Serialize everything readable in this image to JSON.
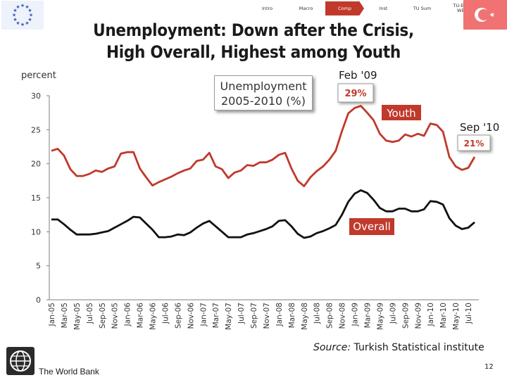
{
  "nav": {
    "tabs": [
      {
        "label": "Intro",
        "active": false
      },
      {
        "label": "Macro",
        "active": false
      },
      {
        "label": "Comp",
        "active": true
      },
      {
        "label": "Inst",
        "active": false
      },
      {
        "label": "TU Sum",
        "active": false
      },
      {
        "label": "TU-EU-\nWB",
        "active": false
      }
    ]
  },
  "title": {
    "line1": "Unemployment: Down after the Crisis,",
    "line2": "High Overall, Highest among Youth"
  },
  "legend_box": {
    "line1": "Unemployment",
    "line2": "2005-2010 (%)"
  },
  "source": {
    "prefix": "Source:",
    "text": " Turkish Statistical institute"
  },
  "footer": {
    "org": "The World Bank",
    "page": "12"
  },
  "colors": {
    "youth_line": "#c0392b",
    "overall_line": "#111111",
    "label_fill": "#c0392b",
    "accent": "#c0392b"
  },
  "chart_data": {
    "type": "line",
    "title": "",
    "ylabel": "percent",
    "xlabel": "",
    "ylim": [
      0,
      30
    ],
    "yticks": [
      0,
      5,
      10,
      15,
      20,
      25,
      30
    ],
    "grid": false,
    "x": [
      "Jan-05",
      "Feb-05",
      "Mar-05",
      "Apr-05",
      "May-05",
      "Jun-05",
      "Jul-05",
      "Aug-05",
      "Sep-05",
      "Oct-05",
      "Nov-05",
      "Dec-05",
      "Jan-06",
      "Feb-06",
      "Mar-06",
      "Apr-06",
      "May-06",
      "Jun-06",
      "Jul-06",
      "Aug-06",
      "Sep-06",
      "Oct-06",
      "Nov-06",
      "Dec-06",
      "Jan-07",
      "Feb-07",
      "Mar-07",
      "Apr-07",
      "May-07",
      "Jun-07",
      "Jul-07",
      "Aug-07",
      "Sep-07",
      "Oct-07",
      "Nov-07",
      "Dec-07",
      "Jan-08",
      "Feb-08",
      "Mar-08",
      "Apr-08",
      "May-08",
      "Jun-08",
      "Jul-08",
      "Aug-08",
      "Sep-08",
      "Oct-08",
      "Nov-08",
      "Dec-08",
      "Jan-09",
      "Feb-09",
      "Mar-09",
      "Apr-09",
      "May-09",
      "Jun-09",
      "Jul-09",
      "Aug-09",
      "Sep-09",
      "Oct-09",
      "Nov-09",
      "Dec-09",
      "Jan-10",
      "Feb-10",
      "Mar-10",
      "Apr-10",
      "May-10",
      "Jun-10",
      "Jul-10",
      "Aug-10"
    ],
    "x_tick_labels": [
      "Jan-05",
      "Mar-05",
      "May-05",
      "Jul-05",
      "Sep-05",
      "Nov-05",
      "Jan-06",
      "Mar-06",
      "May-06",
      "Jul-06",
      "Sep-06",
      "Nov-06",
      "Jan-07",
      "Mar-07",
      "May-07",
      "Jul-07",
      "Sep-07",
      "Nov-07",
      "Jan-08",
      "Mar-08",
      "May-08",
      "Jul-08",
      "Sep-08",
      "Nov-08",
      "Jan-09",
      "Mar-09",
      "May-09",
      "Jul-09",
      "Sep-09",
      "Nov-09",
      "Jan-10",
      "Mar-10",
      "May-10",
      "Jul-10"
    ],
    "series": [
      {
        "name": "Youth",
        "color": "#c0392b",
        "values": [
          21.9,
          22.2,
          21.2,
          19.2,
          18.2,
          18.2,
          18.5,
          19.0,
          18.8,
          19.3,
          19.6,
          21.5,
          21.7,
          21.7,
          19.3,
          18.0,
          16.8,
          17.3,
          17.7,
          18.1,
          18.6,
          19.0,
          19.3,
          20.4,
          20.6,
          21.6,
          19.6,
          19.2,
          17.9,
          18.7,
          19.0,
          19.8,
          19.7,
          20.2,
          20.2,
          20.6,
          21.3,
          21.6,
          19.3,
          17.5,
          16.7,
          18.0,
          18.9,
          19.6,
          20.6,
          21.9,
          24.8,
          27.4,
          28.2,
          28.5,
          27.5,
          26.4,
          24.4,
          23.4,
          23.2,
          23.4,
          24.3,
          24.0,
          24.4,
          24.1,
          25.9,
          25.7,
          24.7,
          21.0,
          19.6,
          19.1,
          19.4,
          21.0
        ]
      },
      {
        "name": "Overall",
        "color": "#111111",
        "values": [
          11.8,
          11.8,
          11.1,
          10.3,
          9.6,
          9.6,
          9.6,
          9.7,
          9.9,
          10.1,
          10.6,
          11.1,
          11.6,
          12.2,
          12.1,
          11.2,
          10.3,
          9.2,
          9.2,
          9.3,
          9.6,
          9.5,
          9.9,
          10.6,
          11.2,
          11.6,
          10.8,
          10.0,
          9.2,
          9.2,
          9.2,
          9.6,
          9.8,
          10.1,
          10.4,
          10.8,
          11.6,
          11.7,
          10.8,
          9.7,
          9.1,
          9.3,
          9.8,
          10.1,
          10.5,
          11.0,
          12.5,
          14.4,
          15.6,
          16.1,
          15.7,
          14.7,
          13.5,
          13.0,
          13.0,
          13.4,
          13.4,
          13.0,
          13.0,
          13.3,
          14.5,
          14.4,
          14.0,
          12.0,
          10.9,
          10.4,
          10.6,
          11.4
        ]
      }
    ],
    "annotations": [
      {
        "label": "Feb '09",
        "value_label": "29%",
        "series": "Youth"
      },
      {
        "label": "Sep '10",
        "value_label": "21%",
        "series": "Youth"
      },
      {
        "label": "Youth",
        "series": "Youth"
      },
      {
        "label": "Overall",
        "series": "Overall"
      }
    ]
  }
}
